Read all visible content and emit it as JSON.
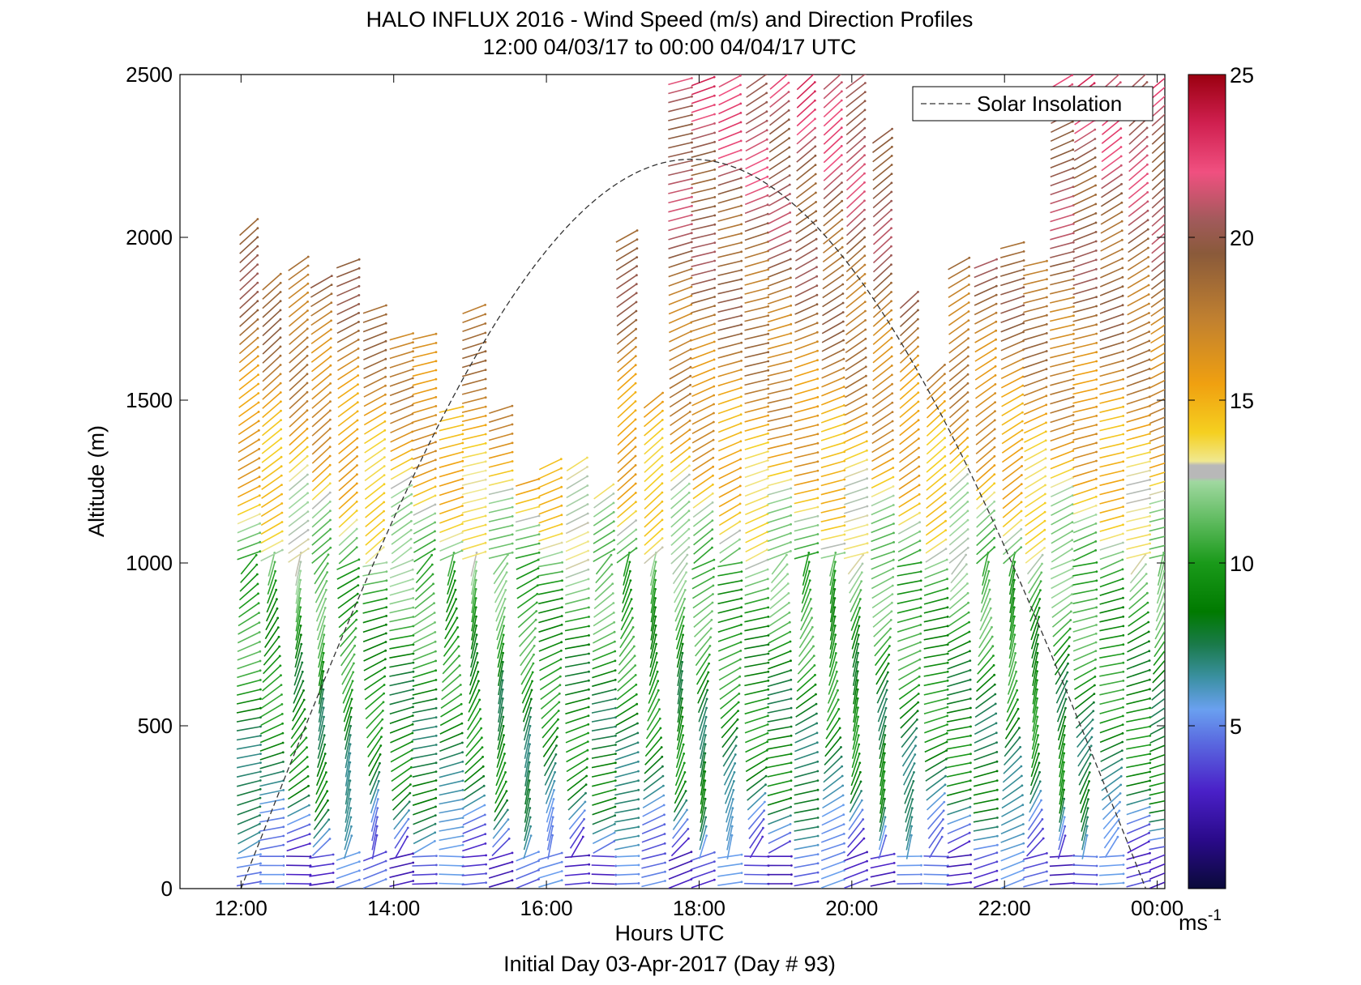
{
  "chart_data": {
    "type": "wind-barb-profile",
    "title": "HALO INFLUX 2016 - Wind Speed (m/s) and Direction Profiles",
    "subtitle": "12:00 04/03/17 to 00:00 04/04/17  UTC",
    "xlabel": "Hours UTC",
    "ylabel": "Altitude (m)",
    "footer": "Initial Day 03-Apr-2017 (Day # 93)",
    "x_range_hours": [
      11.2,
      24.1
    ],
    "y_range_m": [
      0,
      2500
    ],
    "x_ticks": [
      {
        "hour": 12,
        "label": "12:00"
      },
      {
        "hour": 14,
        "label": "14:00"
      },
      {
        "hour": 16,
        "label": "16:00"
      },
      {
        "hour": 18,
        "label": "18:00"
      },
      {
        "hour": 20,
        "label": "20:00"
      },
      {
        "hour": 22,
        "label": "22:00"
      },
      {
        "hour": 24,
        "label": "00:00"
      }
    ],
    "y_ticks": [
      0,
      500,
      1000,
      1500,
      2000,
      2500
    ],
    "legend": {
      "label": "Solar Insolation",
      "position": "top-right",
      "style": "dashed"
    },
    "colorbar": {
      "unit": "ms",
      "unit_sup": "-1",
      "range": [
        0,
        25
      ],
      "ticks": [
        5,
        10,
        15,
        20,
        25
      ]
    },
    "solar_insolation": {
      "start_hour": 12.0,
      "end_hour": 23.85,
      "peak_hour": 17.9,
      "peak_altitude_m": 2240
    },
    "profiles": [
      {
        "hour": 12.1,
        "top_m": 2040
      },
      {
        "hour": 12.4,
        "top_m": 1870
      },
      {
        "hour": 12.75,
        "top_m": 1920
      },
      {
        "hour": 13.05,
        "top_m": 1870
      },
      {
        "hour": 13.4,
        "top_m": 1920
      },
      {
        "hour": 13.75,
        "top_m": 1780
      },
      {
        "hour": 14.1,
        "top_m": 1700
      },
      {
        "hour": 14.4,
        "top_m": 1700
      },
      {
        "hour": 14.75,
        "top_m": 1490
      },
      {
        "hour": 15.05,
        "top_m": 1780
      },
      {
        "hour": 15.4,
        "top_m": 1490
      },
      {
        "hour": 15.75,
        "top_m": 1250
      },
      {
        "hour": 16.05,
        "top_m": 1330
      },
      {
        "hour": 16.4,
        "top_m": 1320
      },
      {
        "hour": 16.75,
        "top_m": 1240
      },
      {
        "hour": 17.05,
        "top_m": 2030
      },
      {
        "hour": 17.4,
        "top_m": 1510
      },
      {
        "hour": 17.75,
        "top_m": 2500
      },
      {
        "hour": 18.05,
        "top_m": 2500
      },
      {
        "hour": 18.4,
        "top_m": 2500
      },
      {
        "hour": 18.75,
        "top_m": 2500
      },
      {
        "hour": 19.05,
        "top_m": 2500
      },
      {
        "hour": 19.4,
        "top_m": 2500
      },
      {
        "hour": 19.75,
        "top_m": 2500
      },
      {
        "hour": 20.05,
        "top_m": 2500
      },
      {
        "hour": 20.4,
        "top_m": 2320
      },
      {
        "hour": 20.75,
        "top_m": 1820
      },
      {
        "hour": 21.1,
        "top_m": 1590
      },
      {
        "hour": 21.4,
        "top_m": 1930
      },
      {
        "hour": 21.75,
        "top_m": 1920
      },
      {
        "hour": 22.1,
        "top_m": 2000
      },
      {
        "hour": 22.4,
        "top_m": 1940
      },
      {
        "hour": 22.75,
        "top_m": 2500
      },
      {
        "hour": 23.05,
        "top_m": 2500
      },
      {
        "hour": 23.4,
        "top_m": 2500
      },
      {
        "hour": 23.75,
        "top_m": 2500
      },
      {
        "hour": 24.05,
        "top_m": 2500
      }
    ],
    "speed_bands": [
      {
        "max_m": 100,
        "speed": 4
      },
      {
        "max_m": 300,
        "speed": 8
      },
      {
        "max_m": 600,
        "speed": 9
      },
      {
        "max_m": 950,
        "speed": 11
      },
      {
        "max_m": 1300,
        "speed": 15
      },
      {
        "max_m": 1700,
        "speed": 18
      },
      {
        "max_m": 2500,
        "speed": 22
      }
    ]
  }
}
